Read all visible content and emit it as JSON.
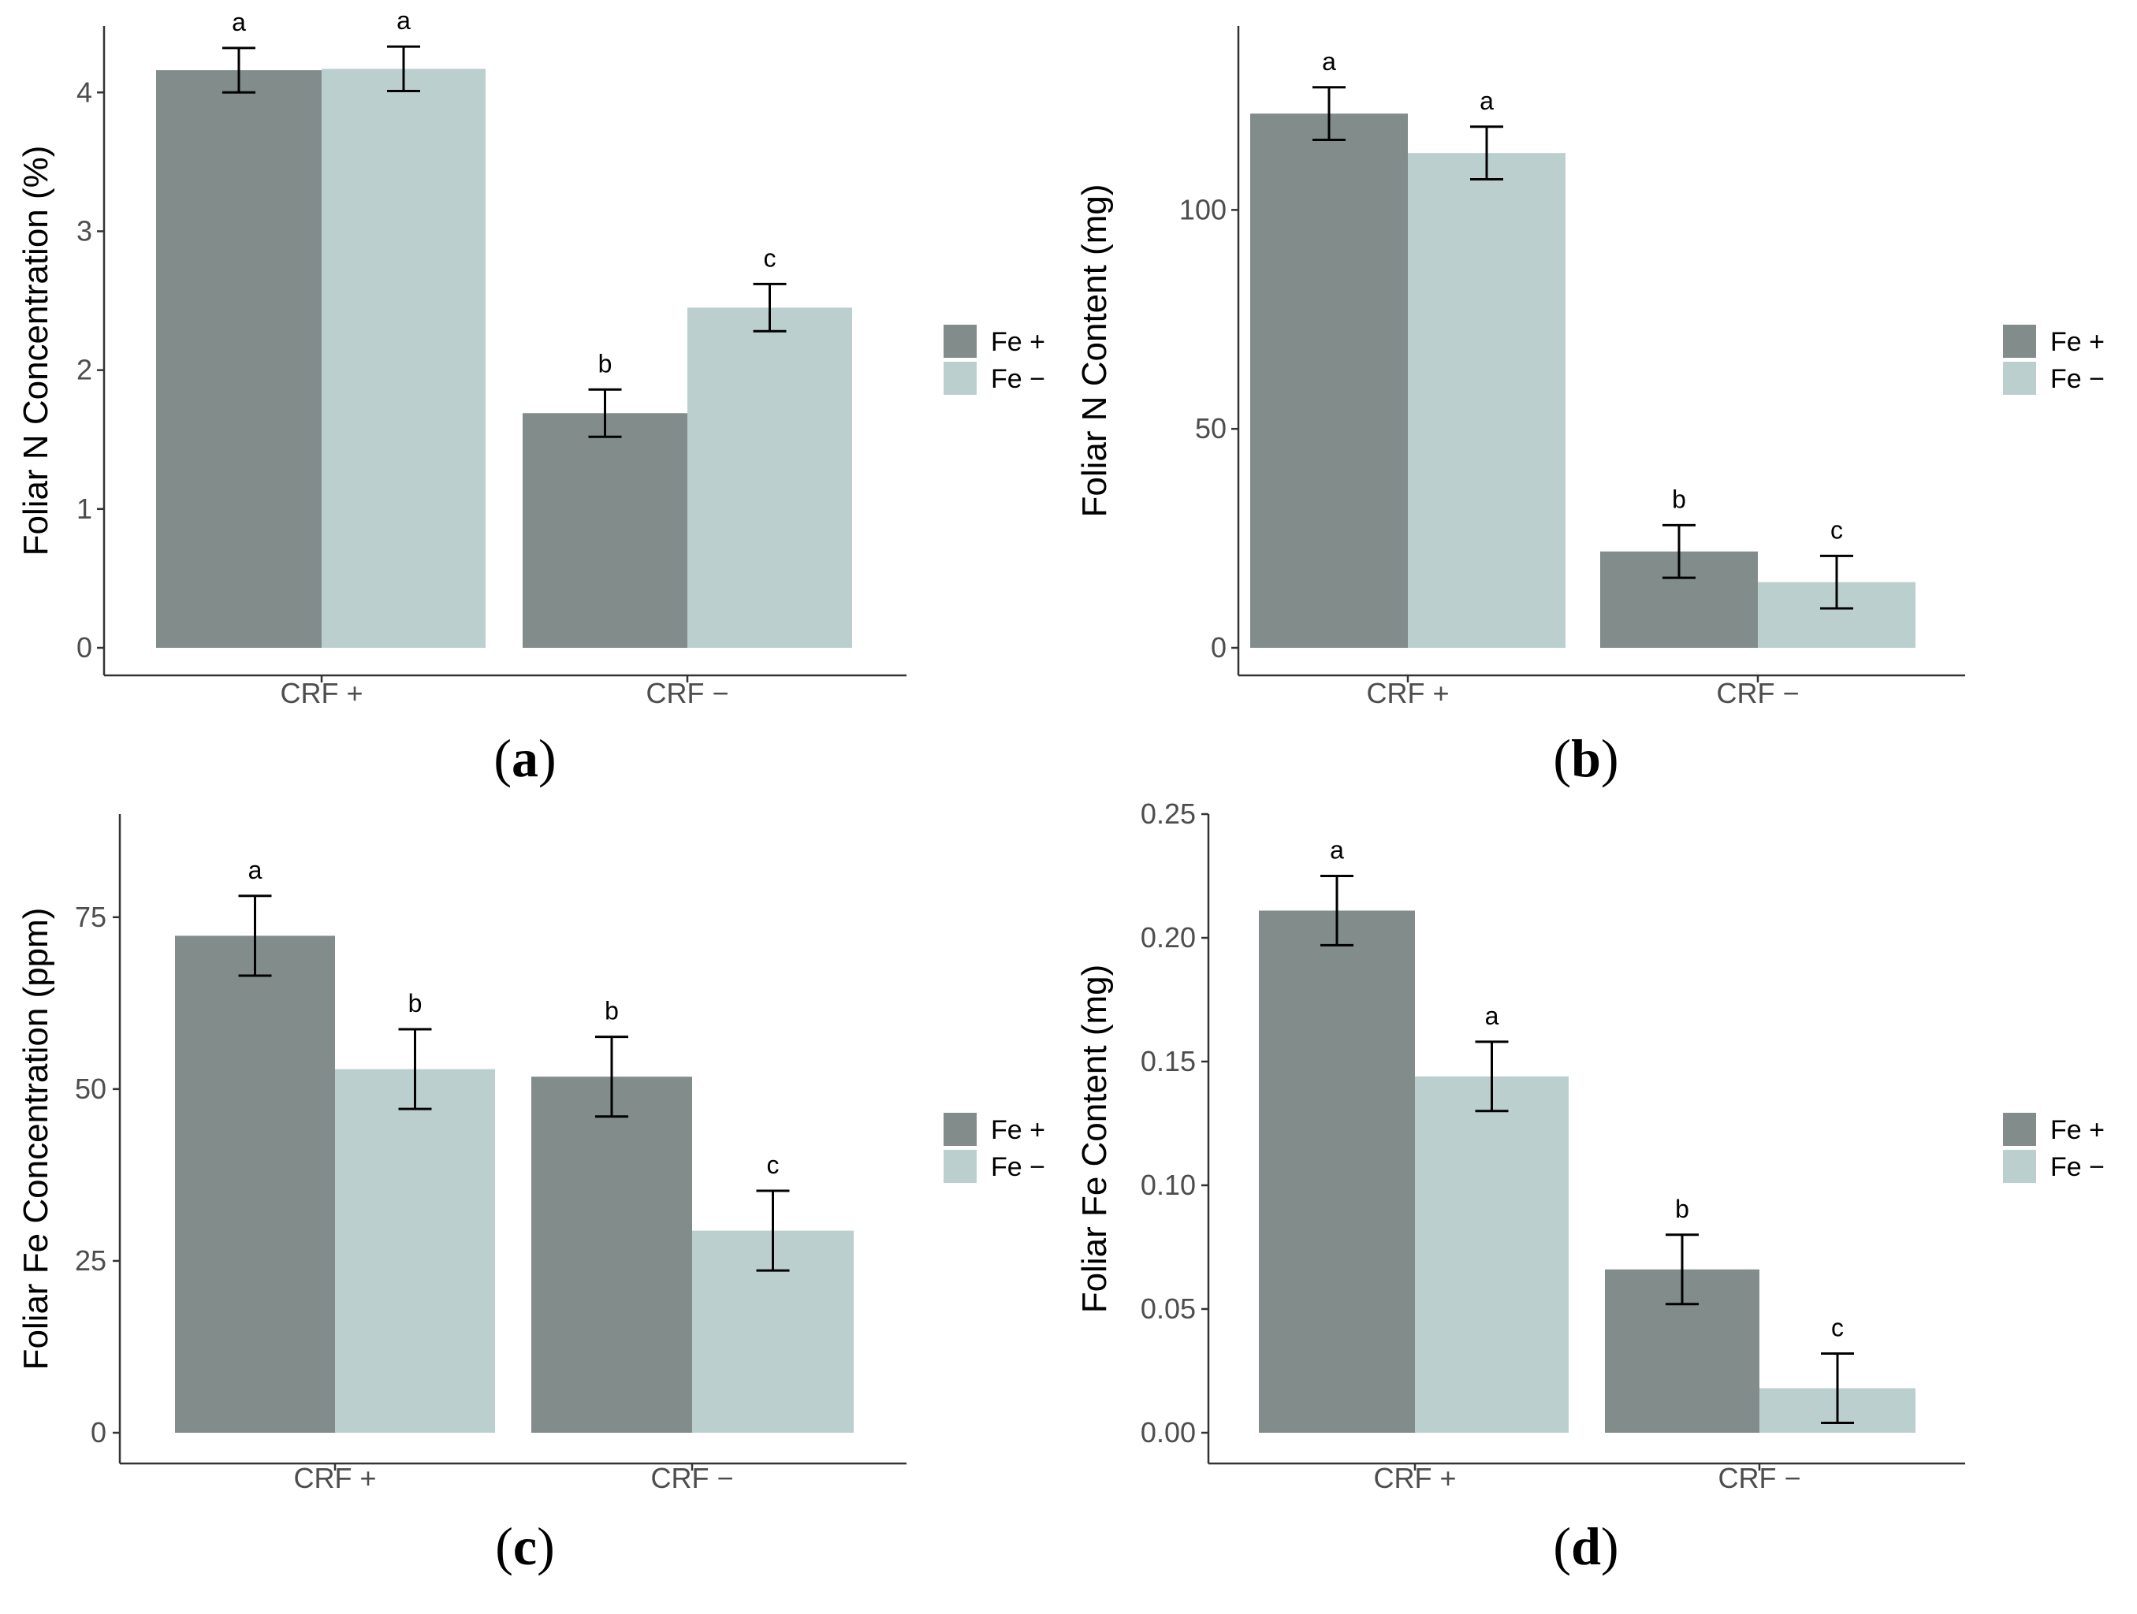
{
  "colors": {
    "fe_plus": "#818c8b",
    "fe_minus": "#bccfcf",
    "axis": "#333333",
    "errorbar": "#000000"
  },
  "chart_data": [
    {
      "panel": "a",
      "type": "bar",
      "ylabel": "Foliar N Concentration (%)",
      "xlabel": "",
      "categories": [
        "CRF +",
        "CRF −"
      ],
      "ylim": [
        0,
        4.45
      ],
      "yticks": [
        0,
        1,
        2,
        3,
        4
      ],
      "ytick_labels": [
        "0",
        "1",
        "2",
        "3",
        "4"
      ],
      "legend_position": "right",
      "series": [
        {
          "name": "Fe +",
          "values": [
            4.16,
            1.69
          ],
          "errors": [
            0.16,
            0.17
          ],
          "letters": [
            "a",
            "b"
          ]
        },
        {
          "name": "Fe −",
          "values": [
            4.17,
            2.45
          ],
          "errors": [
            0.16,
            0.17
          ],
          "letters": [
            "a",
            "c"
          ]
        }
      ]
    },
    {
      "panel": "b",
      "type": "bar",
      "ylabel": "Foliar N Content (mg)",
      "xlabel": "",
      "categories": [
        "CRF +",
        "CRF −"
      ],
      "ylim": [
        0,
        142
      ],
      "yticks": [
        0,
        50,
        100
      ],
      "ytick_labels": [
        "0",
        "50",
        "100"
      ],
      "legend_position": "right",
      "series": [
        {
          "name": "Fe +",
          "values": [
            122,
            22
          ],
          "errors": [
            6,
            6
          ],
          "letters": [
            "a",
            "b"
          ]
        },
        {
          "name": "Fe −",
          "values": [
            113,
            15
          ],
          "errors": [
            6,
            6
          ],
          "letters": [
            "a",
            "c"
          ]
        }
      ]
    },
    {
      "panel": "c",
      "type": "bar",
      "ylabel": "Foliar Fe Concentration (ppm)",
      "xlabel": "",
      "categories": [
        "CRF +",
        "CRF −"
      ],
      "ylim": [
        0,
        90
      ],
      "yticks": [
        0,
        25,
        50,
        75
      ],
      "ytick_labels": [
        "0",
        "25",
        "50",
        "75"
      ],
      "legend_position": "right",
      "series": [
        {
          "name": "Fe +",
          "values": [
            72.3,
            51.8
          ],
          "errors": [
            5.8,
            5.8
          ],
          "letters": [
            "a",
            "b"
          ]
        },
        {
          "name": "Fe −",
          "values": [
            52.9,
            29.4
          ],
          "errors": [
            5.8,
            5.8
          ],
          "letters": [
            "b",
            "c"
          ]
        }
      ]
    },
    {
      "panel": "d",
      "type": "bar",
      "ylabel": "Foliar Fe Content (mg)",
      "xlabel": "",
      "categories": [
        "CRF +",
        "CRF −"
      ],
      "ylim": [
        0,
        0.25
      ],
      "yticks": [
        0,
        0.05,
        0.1,
        0.15,
        0.2,
        0.25
      ],
      "ytick_labels": [
        "0.00",
        "0.05",
        "0.10",
        "0.15",
        "0.20",
        "0.25"
      ],
      "legend_position": "right",
      "series": [
        {
          "name": "Fe +",
          "values": [
            0.211,
            0.066
          ],
          "errors": [
            0.014,
            0.014
          ],
          "letters": [
            "a",
            "b"
          ]
        },
        {
          "name": "Fe −",
          "values": [
            0.144,
            0.018
          ],
          "errors": [
            0.014,
            0.014
          ],
          "letters": [
            "a",
            "c"
          ]
        }
      ]
    }
  ]
}
